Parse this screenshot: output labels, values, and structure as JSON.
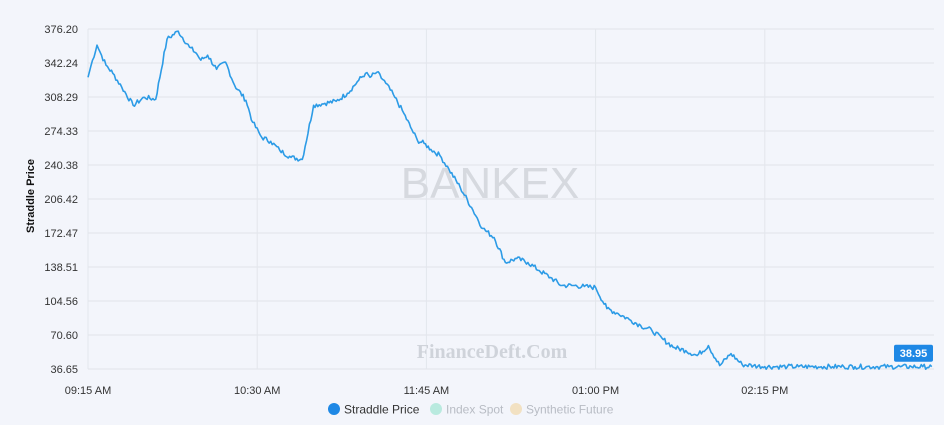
{
  "chart_data": {
    "type": "line",
    "ylabel": "Straddle Price",
    "watermark": "BANKEX",
    "brand_watermark": "FinanceDeft.Com",
    "ylim": [
      36.65,
      376.2
    ],
    "y_ticks": [
      "376.20",
      "342.24",
      "308.29",
      "274.33",
      "240.38",
      "206.42",
      "172.47",
      "138.51",
      "104.56",
      "70.60",
      "36.65"
    ],
    "x_ticks": [
      "09:15 AM",
      "10:30 AM",
      "11:45 AM",
      "01:00 PM",
      "02:15 PM"
    ],
    "last_value_label": "38.95",
    "legend": [
      {
        "name": "Straddle Price",
        "color": "#1e88e5",
        "active": true
      },
      {
        "name": "Index Spot",
        "color": "#b9eadf",
        "active": false
      },
      {
        "name": "Synthetic Future",
        "color": "#f2e1c2",
        "active": false
      }
    ],
    "series": [
      {
        "name": "Straddle Price",
        "color": "#2c9be6",
        "x": [
          "09:15",
          "09:17",
          "09:19",
          "09:21",
          "09:23",
          "09:26",
          "09:30",
          "09:35",
          "09:40",
          "09:45",
          "09:50",
          "09:55",
          "10:00",
          "10:03",
          "10:05",
          "10:08",
          "10:12",
          "10:16",
          "10:20",
          "10:25",
          "10:28",
          "10:32",
          "10:36",
          "10:40",
          "10:45",
          "10:50",
          "10:55",
          "11:00",
          "11:05",
          "11:10",
          "11:15",
          "11:18",
          "11:20",
          "11:23",
          "11:27",
          "11:31",
          "11:35",
          "11:38",
          "11:41",
          "11:44",
          "11:47",
          "11:51",
          "11:55",
          "12:00",
          "12:05",
          "12:10",
          "12:15",
          "12:20",
          "12:25",
          "12:30",
          "12:35",
          "12:40",
          "12:45",
          "12:50",
          "12:55",
          "13:00",
          "13:05",
          "13:10",
          "13:15",
          "13:20",
          "13:25",
          "13:30",
          "13:35",
          "13:40",
          "13:45",
          "13:50",
          "13:55",
          "14:00",
          "14:05",
          "14:10",
          "14:15",
          "14:20",
          "14:25",
          "14:30",
          "14:35",
          "14:40",
          "14:45",
          "14:50",
          "14:55",
          "15:00",
          "15:05",
          "15:10",
          "15:15",
          "15:20",
          "15:25",
          "15:29"
        ],
        "y": [
          328,
          345,
          360,
          350,
          340,
          332,
          318,
          300,
          308,
          306,
          366,
          374,
          358,
          352,
          345,
          350,
          336,
          343,
          320,
          305,
          283,
          268,
          264,
          255,
          248,
          246,
          300,
          302,
          304,
          312,
          325,
          332,
          328,
          333,
          322,
          308,
          292,
          278,
          265,
          262,
          256,
          250,
          236,
          218,
          198,
          177,
          168,
          143,
          147,
          143,
          135,
          128,
          120,
          120,
          119,
          118,
          97,
          92,
          86,
          80,
          75,
          66,
          58,
          55,
          50,
          60,
          40,
          52,
          41,
          40,
          39,
          39,
          39,
          38.95,
          38.95,
          38.95,
          38.95,
          38.95,
          38.95,
          38.95,
          38.95,
          38.95,
          38.95,
          38.95,
          38.95,
          38.95
        ]
      }
    ]
  }
}
